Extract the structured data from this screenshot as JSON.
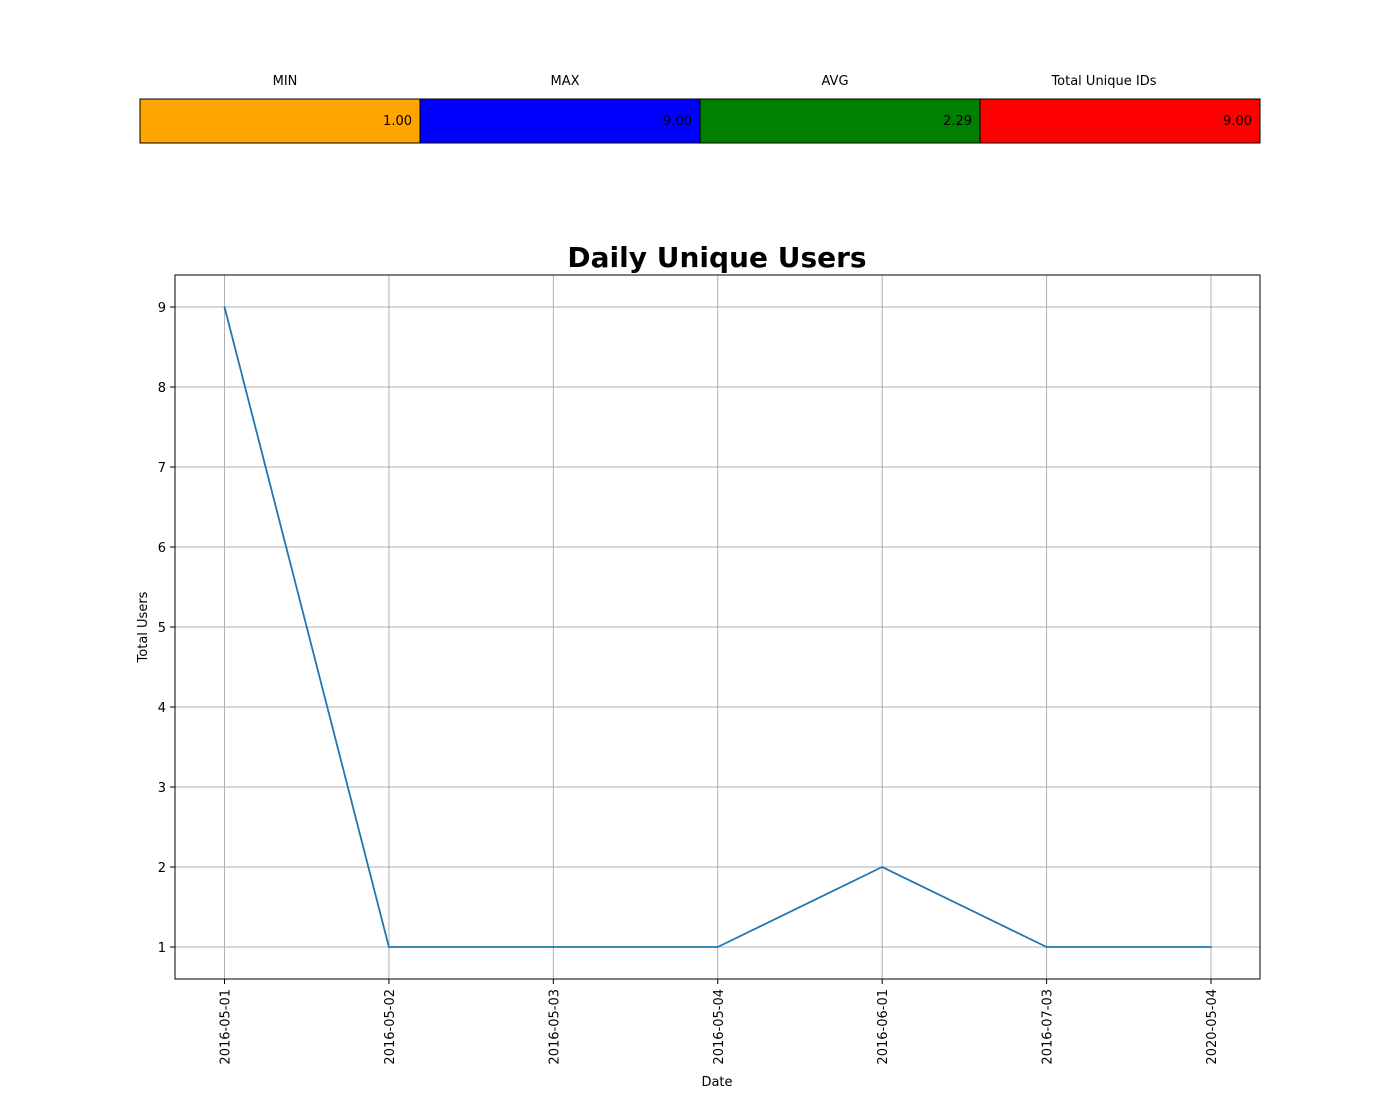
{
  "summary": {
    "cards": [
      {
        "label": "MIN",
        "value": "1.00",
        "color": "#ffa500"
      },
      {
        "label": "MAX",
        "value": "9.00",
        "color": "#0000ff"
      },
      {
        "label": "AVG",
        "value": "2.29",
        "color": "#008000"
      },
      {
        "label": "Total Unique IDs",
        "value": "9.00",
        "color": "#ff0000"
      }
    ]
  },
  "chart_data": {
    "type": "line",
    "title": "Daily Unique Users",
    "xlabel": "Date",
    "ylabel": "Total Users",
    "categories": [
      "2016-05-01",
      "2016-05-02",
      "2016-05-03",
      "2016-05-04",
      "2016-06-01",
      "2016-07-03",
      "2020-05-04"
    ],
    "series": [
      {
        "values": [
          9,
          1,
          1,
          1,
          2,
          1,
          1
        ],
        "color": "#1f77b4"
      }
    ],
    "yticks": [
      1,
      2,
      3,
      4,
      5,
      6,
      7,
      8,
      9
    ],
    "ylim": [
      0.6,
      9.4
    ],
    "grid": true
  }
}
